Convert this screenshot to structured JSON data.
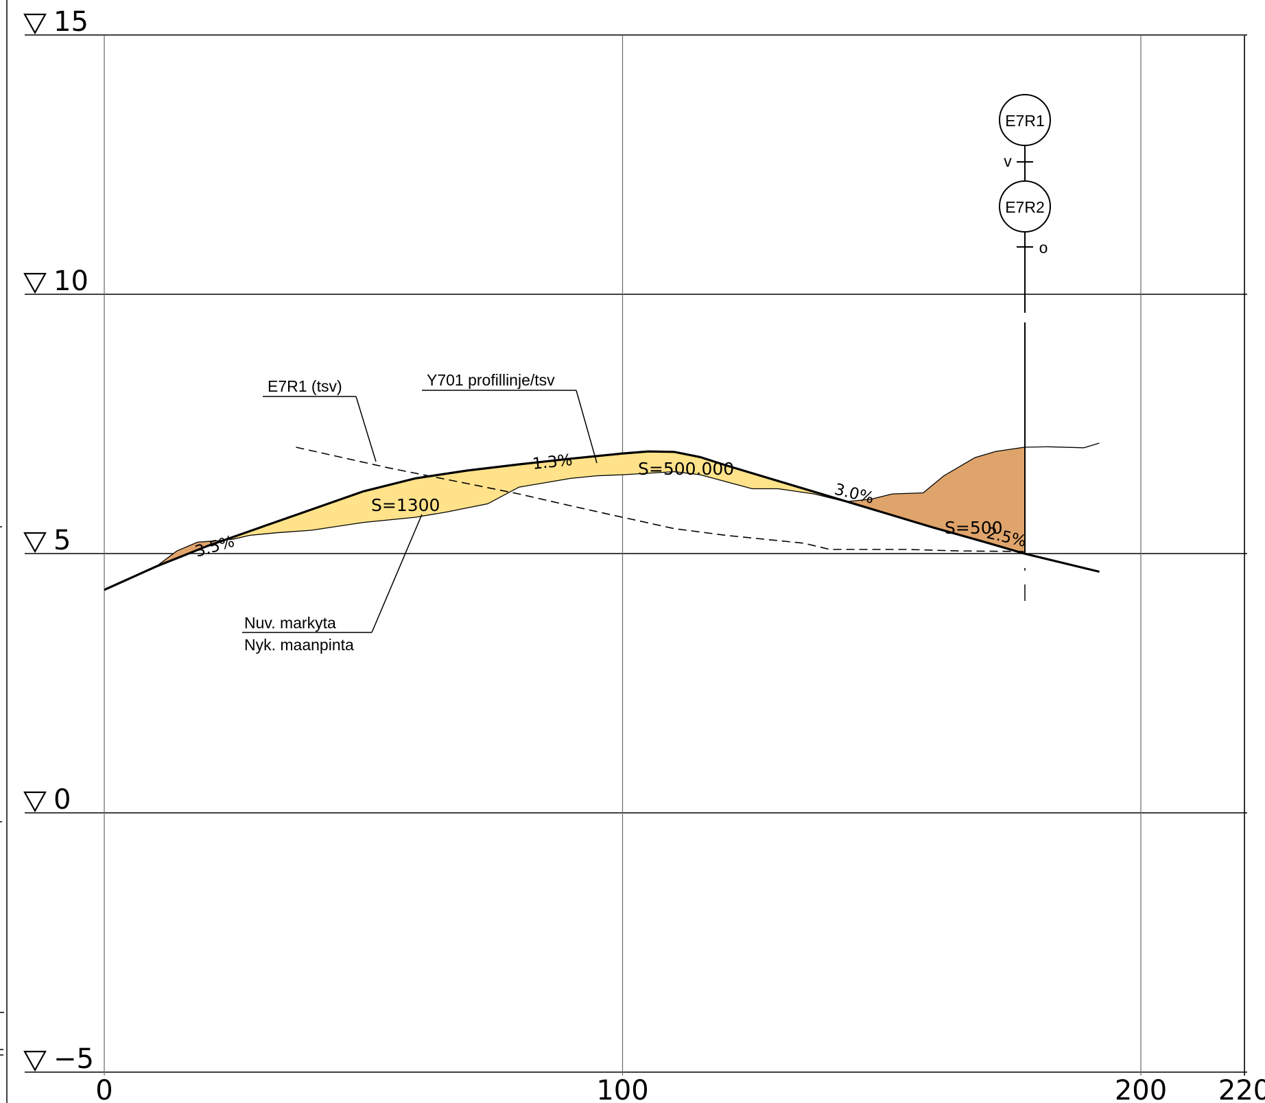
{
  "axes": {
    "elevations": [
      15,
      10,
      5,
      0,
      -5
    ],
    "elevation_labels": [
      "15",
      "10",
      "5",
      "0",
      "−5"
    ],
    "stations": [
      0,
      100,
      200,
      220
    ],
    "station_labels": [
      "0",
      "100",
      "200",
      "220"
    ]
  },
  "callouts": {
    "e7r1": "E7R1 (tsv)",
    "y701": "Y701 profillinje/tsv",
    "ground_line1": "Nuv. markyta",
    "ground_line2": "Nyk. maanpinta"
  },
  "slopes": {
    "s1": "3.5%",
    "s2": "1.3%",
    "s3": "3.0%",
    "s4": "2.5%"
  },
  "curves": {
    "c1": "S=1300",
    "c2": "S=500.000",
    "c3": "S=500"
  },
  "nodes": {
    "top": "E7R1",
    "bottom": "E7R2",
    "mark_v": "v",
    "mark_o": "o"
  },
  "colors": {
    "fill_light": "#FFE28A",
    "fill_dark": "#DFA46B",
    "line": "#000000",
    "grid": "#555555"
  },
  "chart_data": {
    "type": "line",
    "xlabel": "",
    "ylabel": "",
    "xlim": [
      0,
      220
    ],
    "ylim": [
      -5,
      15
    ],
    "series": [
      {
        "role": "design-profile",
        "x": [
          0,
          10,
          20,
          30,
          40,
          50,
          60,
          70,
          80,
          90,
          100,
          105,
          110,
          115,
          120,
          130,
          140,
          150,
          160,
          170,
          177.5,
          192
        ],
        "y": [
          4.3,
          4.75,
          5.15,
          5.5,
          5.85,
          6.2,
          6.45,
          6.6,
          6.72,
          6.83,
          6.93,
          6.97,
          6.96,
          6.86,
          6.7,
          6.4,
          6.1,
          5.8,
          5.5,
          5.22,
          5.0,
          4.65
        ]
      },
      {
        "role": "ground",
        "x": [
          10,
          14,
          18,
          22,
          25,
          28,
          33,
          40,
          50,
          60,
          66,
          74,
          80,
          90,
          95,
          100,
          110,
          115,
          125,
          130,
          137,
          143,
          148,
          152,
          158,
          162,
          168,
          172,
          177.5,
          182,
          189,
          192
        ],
        "y": [
          4.75,
          5.05,
          5.22,
          5.25,
          5.28,
          5.35,
          5.4,
          5.45,
          5.6,
          5.7,
          5.8,
          5.96,
          6.28,
          6.45,
          6.5,
          6.52,
          6.58,
          6.52,
          6.25,
          6.25,
          6.15,
          6.0,
          6.05,
          6.15,
          6.17,
          6.5,
          6.85,
          6.97,
          7.05,
          7.06,
          7.04,
          7.13
        ]
      },
      {
        "role": "e7r1-dashed",
        "x": [
          37,
          55,
          70,
          80,
          90,
          100,
          110,
          120,
          135,
          140,
          155,
          165,
          177.5
        ],
        "y": [
          7.05,
          6.65,
          6.35,
          6.15,
          5.92,
          5.7,
          5.48,
          5.35,
          5.2,
          5.08,
          5.08,
          5.05,
          5.04
        ]
      }
    ]
  }
}
